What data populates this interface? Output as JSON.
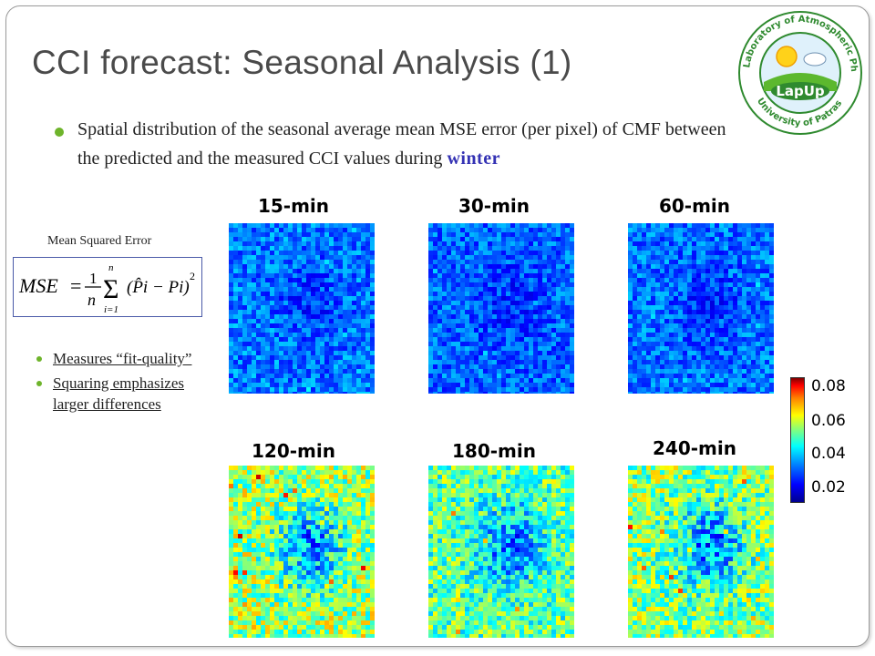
{
  "slide": {
    "title": "CCI forecast: Seasonal Analysis (1)",
    "description_main": "Spatial distribution of the seasonal average mean MSE error (per pixel) of CMF between the predicted and the measured CCI values during",
    "description_highlight": "winter",
    "highlight_color": "#3432b4",
    "accent_bullet_color": "#6eb42b"
  },
  "logo": {
    "ring_text": "Laboratory of Atmospheric Physics • University of Patras •",
    "badge_text": "LapUp"
  },
  "mse": {
    "label": "Mean Squared Error",
    "formula_lhs": "MSE",
    "formula_eq": "=",
    "formula_num": "1",
    "formula_den": "n",
    "sum_top": "n",
    "sum_bottom": "i=1",
    "term": "(P̂i − Pi)",
    "power": "2"
  },
  "bullets": [
    {
      "text": "Measures “fit-quality”"
    },
    {
      "text": "Squaring emphasizes larger differences"
    }
  ],
  "panels": [
    {
      "label": "15-min",
      "error_level": 0.15
    },
    {
      "label": "30-min",
      "error_level": 0.12
    },
    {
      "label": "60-min",
      "error_level": 0.14
    },
    {
      "label": "120-min",
      "error_level": 0.62
    },
    {
      "label": "180-min",
      "error_level": 0.52
    },
    {
      "label": "240-min",
      "error_level": 0.58
    }
  ],
  "colorbar": {
    "ticks": [
      "0.08",
      "0.06",
      "0.04",
      "0.02"
    ],
    "colors": [
      "#00008f",
      "#0000ff",
      "#0080ff",
      "#00ffff",
      "#80ff80",
      "#ffff00",
      "#ff8000",
      "#ff0000",
      "#800000"
    ]
  }
}
